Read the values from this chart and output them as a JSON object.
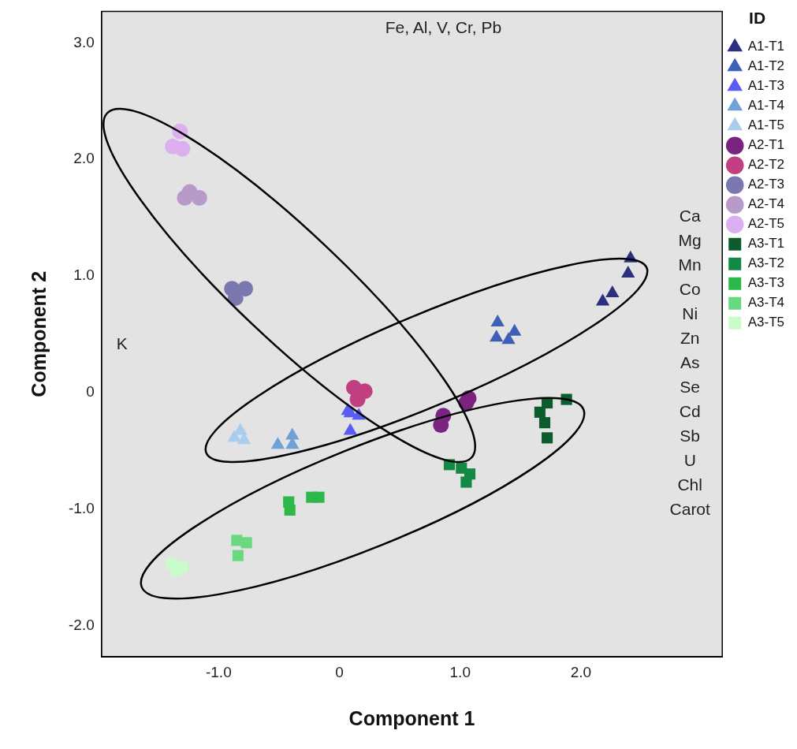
{
  "chart_data": {
    "type": "scatter",
    "xlabel": "Component 1",
    "ylabel": "Component 2",
    "legend_title": "ID",
    "legend": "right",
    "grid": false,
    "xlim": [
      -1.97,
      3.17
    ],
    "ylim": [
      -2.27,
      3.27
    ],
    "xticks": [
      {
        "value": -1,
        "label": "-1.0"
      },
      0,
      {
        "value": 1,
        "label": "1.0"
      },
      {
        "value": 2,
        "label": "2.0"
      }
    ],
    "yticks": [
      {
        "value": -2,
        "label": "-2.0"
      },
      {
        "value": -1,
        "label": "-1.0"
      },
      0,
      {
        "value": 1,
        "label": "1.0"
      },
      {
        "value": 2,
        "label": "2.0"
      },
      {
        "value": 3,
        "label": "3.0"
      }
    ],
    "series": [
      {
        "name": "A1-T1",
        "color": "#2b2f7f",
        "marker": "triangle",
        "x": [
          2.41,
          2.39,
          2.26,
          2.18
        ],
        "values": [
          1.15,
          1.02,
          0.85,
          0.78
        ]
      },
      {
        "name": "A1-T2",
        "color": "#3d5fb5",
        "marker": "triangle",
        "x": [
          1.31,
          1.3,
          1.45,
          1.4
        ],
        "values": [
          0.6,
          0.47,
          0.52,
          0.45
        ]
      },
      {
        "name": "A1-T3",
        "color": "#5a5cf5",
        "marker": "triangle",
        "x": [
          0.09,
          0.16,
          0.09,
          0.07
        ],
        "values": [
          -0.18,
          -0.2,
          -0.33,
          -0.16
        ]
      },
      {
        "name": "A1-T4",
        "color": "#6fa0d6",
        "marker": "triangle",
        "x": [
          -0.51,
          -0.39,
          -0.39
        ],
        "values": [
          -0.45,
          -0.37,
          -0.45
        ]
      },
      {
        "name": "A1-T5",
        "color": "#a8cdef",
        "marker": "triangle",
        "x": [
          -0.82,
          -0.79,
          -0.87
        ],
        "values": [
          -0.33,
          -0.41,
          -0.39
        ]
      },
      {
        "name": "A2-T1",
        "color": "#7b2380",
        "marker": "circle",
        "x": [
          1.07,
          1.05,
          0.86,
          0.84
        ],
        "values": [
          -0.05,
          -0.09,
          -0.2,
          -0.28
        ]
      },
      {
        "name": "A2-T2",
        "color": "#c23f82",
        "marker": "circle",
        "x": [
          0.12,
          0.21,
          0.15
        ],
        "values": [
          0.04,
          0.01,
          -0.06
        ]
      },
      {
        "name": "A2-T3",
        "color": "#7a78ae",
        "marker": "circle",
        "x": [
          -0.89,
          -0.78,
          -0.86
        ],
        "values": [
          0.89,
          0.89,
          0.81
        ]
      },
      {
        "name": "A2-T4",
        "color": "#b89ac9",
        "marker": "circle",
        "x": [
          -1.24,
          -1.16,
          -1.28
        ],
        "values": [
          1.72,
          1.67,
          1.67
        ]
      },
      {
        "name": "A2-T5",
        "color": "#dcb0f0",
        "marker": "circle",
        "x": [
          -1.32,
          -1.3,
          -1.38
        ],
        "values": [
          2.24,
          2.09,
          2.11
        ]
      },
      {
        "name": "A3-T1",
        "color": "#0d5c2e",
        "marker": "square",
        "x": [
          1.88,
          1.72,
          1.66,
          1.7,
          1.72
        ],
        "values": [
          -0.06,
          -0.09,
          -0.17,
          -0.26,
          -0.39
        ]
      },
      {
        "name": "A3-T2",
        "color": "#128a45",
        "marker": "square",
        "x": [
          0.91,
          1.01,
          1.08,
          1.05
        ],
        "values": [
          -0.62,
          -0.65,
          -0.7,
          -0.77
        ]
      },
      {
        "name": "A3-T3",
        "color": "#2db84a",
        "marker": "square",
        "x": [
          -0.42,
          -0.41,
          -0.23,
          -0.17
        ],
        "values": [
          -0.94,
          -1.01,
          -0.9,
          -0.9
        ]
      },
      {
        "name": "A3-T4",
        "color": "#6ad87e",
        "marker": "square",
        "x": [
          -0.85,
          -0.84,
          -0.77
        ],
        "values": [
          -1.27,
          -1.4,
          -1.29
        ]
      },
      {
        "name": "A3-T5",
        "color": "#c8fcc8",
        "marker": "square",
        "x": [
          -1.39,
          -1.3,
          -1.35
        ],
        "values": [
          -1.47,
          -1.5,
          -1.53
        ]
      }
    ],
    "annotations": [
      "Fe, Al, V, Cr, Pb",
      "K",
      "Ca",
      "Mg",
      "Mn",
      "Co",
      "Ni",
      "Zn",
      "As",
      "Se",
      "Cd",
      "Sb",
      "U",
      "Chl",
      "Carot"
    ]
  }
}
